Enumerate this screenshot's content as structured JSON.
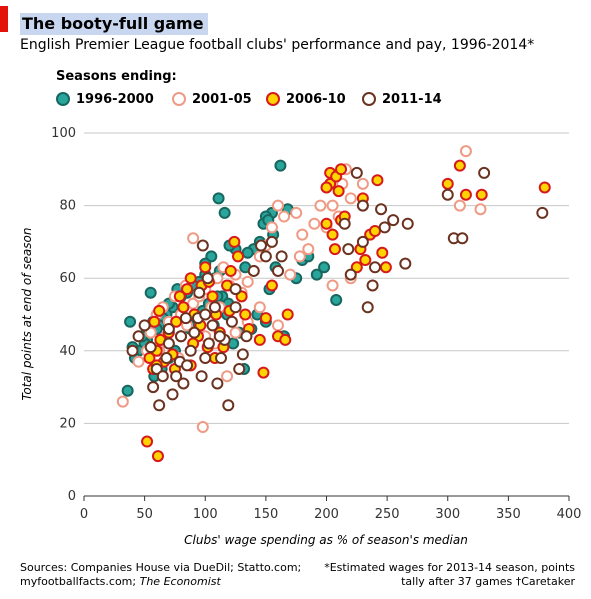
{
  "header": {
    "title": "The booty-full game",
    "subtitle": "English Premier League football clubs' performance and pay, 1996-2014*"
  },
  "legend": {
    "title": "Seasons ending:",
    "items": [
      "1996-2000",
      "2001-05",
      "2006-10",
      "2011-14"
    ]
  },
  "footer": {
    "sources_line1": "Sources: Companies House via DueDil; Statto.com;",
    "sources_line2_a": "myfootballfacts.com; ",
    "sources_line2_b": "The Economist",
    "note_line1": "*Estimated wages for 2013-14 season, points",
    "note_line2": "tally after 37 games †Caretaker"
  },
  "colors": {
    "s1996_fill": "#2aa59b",
    "s1996_stroke": "#17665f",
    "s2001_fill": "#ffffff",
    "s2001_stroke": "#ef9a84",
    "s2006_fill": "#ffd400",
    "s2006_stroke": "#d7191c",
    "s2011_fill": "#ffffff",
    "s2011_stroke": "#6b3220",
    "grid": "#c7c7c7",
    "axis": "#333333"
  },
  "chart_data": {
    "type": "scatter",
    "xlabel": "Clubs' wage spending as % of season's median",
    "ylabel": "Total points at end of season",
    "xlim": [
      0,
      400
    ],
    "ylim": [
      0,
      100
    ],
    "xticks": [
      0,
      50,
      100,
      150,
      200,
      250,
      300,
      350,
      400
    ],
    "yticks": [
      0,
      20,
      40,
      60,
      80,
      100
    ],
    "grid": "horizontal",
    "legend_position": "top-left",
    "series": [
      {
        "name": "1996-2000",
        "points": [
          [
            162,
            91
          ],
          [
            111,
            82
          ],
          [
            116,
            78
          ],
          [
            155,
            78
          ],
          [
            168,
            79
          ],
          [
            150,
            77
          ],
          [
            148,
            75
          ],
          [
            152,
            76
          ],
          [
            156,
            72
          ],
          [
            145,
            70
          ],
          [
            140,
            68
          ],
          [
            135,
            67
          ],
          [
            125,
            68
          ],
          [
            120,
            69
          ],
          [
            133,
            63
          ],
          [
            112,
            62
          ],
          [
            108,
            60
          ],
          [
            100,
            61
          ],
          [
            95,
            59
          ],
          [
            90,
            58
          ],
          [
            85,
            56
          ],
          [
            80,
            55
          ],
          [
            77,
            57
          ],
          [
            73,
            52
          ],
          [
            70,
            53
          ],
          [
            68,
            50
          ],
          [
            65,
            49
          ],
          [
            62,
            47
          ],
          [
            60,
            46
          ],
          [
            57,
            48
          ],
          [
            55,
            56
          ],
          [
            52,
            43
          ],
          [
            50,
            42
          ],
          [
            48,
            44
          ],
          [
            45,
            40
          ],
          [
            42,
            38
          ],
          [
            40,
            41
          ],
          [
            38,
            48
          ],
          [
            36,
            29
          ],
          [
            58,
            33
          ],
          [
            64,
            35
          ],
          [
            70,
            38
          ],
          [
            75,
            40
          ],
          [
            80,
            44
          ],
          [
            88,
            46
          ],
          [
            92,
            49
          ],
          [
            98,
            51
          ],
          [
            103,
            53
          ],
          [
            107,
            47
          ],
          [
            114,
            55
          ],
          [
            119,
            53
          ],
          [
            128,
            45
          ],
          [
            132,
            35
          ],
          [
            138,
            46
          ],
          [
            143,
            50
          ],
          [
            153,
            57
          ],
          [
            158,
            63
          ],
          [
            165,
            44
          ],
          [
            175,
            60
          ],
          [
            180,
            65
          ],
          [
            185,
            66
          ],
          [
            192,
            61
          ],
          [
            198,
            63
          ],
          [
            208,
            54
          ],
          [
            150,
            48
          ],
          [
            110,
            55
          ],
          [
            105,
            66
          ],
          [
            100,
            64
          ],
          [
            118,
            50
          ],
          [
            123,
            42
          ]
        ]
      },
      {
        "name": "2001-05",
        "points": [
          [
            32,
            26
          ],
          [
            98,
            19
          ],
          [
            45,
            37
          ],
          [
            52,
            40
          ],
          [
            55,
            45
          ],
          [
            60,
            50
          ],
          [
            65,
            52
          ],
          [
            70,
            48
          ],
          [
            75,
            55
          ],
          [
            80,
            50
          ],
          [
            85,
            47
          ],
          [
            90,
            53
          ],
          [
            95,
            55
          ],
          [
            100,
            57
          ],
          [
            105,
            52
          ],
          [
            110,
            60
          ],
          [
            115,
            63
          ],
          [
            120,
            58
          ],
          [
            125,
            61
          ],
          [
            130,
            56
          ],
          [
            135,
            59
          ],
          [
            140,
            62
          ],
          [
            145,
            66
          ],
          [
            150,
            69
          ],
          [
            155,
            74
          ],
          [
            160,
            80
          ],
          [
            165,
            77
          ],
          [
            175,
            78
          ],
          [
            180,
            72
          ],
          [
            190,
            75
          ],
          [
            195,
            80
          ],
          [
            200,
            74
          ],
          [
            205,
            80
          ],
          [
            210,
            77
          ],
          [
            213,
            86
          ],
          [
            216,
            90
          ],
          [
            220,
            82
          ],
          [
            230,
            86
          ],
          [
            205,
            58
          ],
          [
            220,
            60
          ],
          [
            170,
            61
          ],
          [
            178,
            66
          ],
          [
            185,
            68
          ],
          [
            310,
            80
          ],
          [
            315,
            95
          ],
          [
            327,
            79
          ],
          [
            90,
            71
          ],
          [
            118,
            33
          ],
          [
            125,
            45
          ],
          [
            135,
            48
          ],
          [
            160,
            47
          ],
          [
            145,
            52
          ],
          [
            100,
            44
          ],
          [
            108,
            42
          ],
          [
            78,
            38
          ],
          [
            68,
            44
          ],
          [
            62,
            40
          ],
          [
            84,
            58
          ],
          [
            112,
            52
          ]
        ]
      },
      {
        "name": "2006-10",
        "points": [
          [
            52,
            15
          ],
          [
            61,
            11
          ],
          [
            54,
            38
          ],
          [
            57,
            35
          ],
          [
            60,
            40
          ],
          [
            63,
            43
          ],
          [
            66,
            37
          ],
          [
            70,
            45
          ],
          [
            73,
            39
          ],
          [
            76,
            48
          ],
          [
            79,
            55
          ],
          [
            82,
            52
          ],
          [
            85,
            57
          ],
          [
            88,
            60
          ],
          [
            91,
            50
          ],
          [
            94,
            44
          ],
          [
            97,
            58
          ],
          [
            100,
            63
          ],
          [
            103,
            59
          ],
          [
            106,
            55
          ],
          [
            109,
            50
          ],
          [
            112,
            45
          ],
          [
            115,
            41
          ],
          [
            118,
            58
          ],
          [
            121,
            62
          ],
          [
            124,
            70
          ],
          [
            127,
            66
          ],
          [
            130,
            55
          ],
          [
            133,
            50
          ],
          [
            136,
            46
          ],
          [
            148,
            34
          ],
          [
            150,
            49
          ],
          [
            155,
            58
          ],
          [
            160,
            44
          ],
          [
            166,
            43
          ],
          [
            168,
            50
          ],
          [
            200,
            75
          ],
          [
            203,
            86
          ],
          [
            205,
            72
          ],
          [
            207,
            68
          ],
          [
            210,
            84
          ],
          [
            212,
            76
          ],
          [
            203,
            89
          ],
          [
            208,
            88
          ],
          [
            212,
            90
          ],
          [
            215,
            77
          ],
          [
            225,
            63
          ],
          [
            228,
            68
          ],
          [
            232,
            65
          ],
          [
            236,
            72
          ],
          [
            240,
            73
          ],
          [
            242,
            87
          ],
          [
            246,
            67
          ],
          [
            249,
            63
          ],
          [
            200,
            85
          ],
          [
            300,
            86
          ],
          [
            310,
            91
          ],
          [
            315,
            83
          ],
          [
            328,
            83
          ],
          [
            380,
            85
          ],
          [
            90,
            42
          ],
          [
            96,
            47
          ],
          [
            60,
            36
          ],
          [
            58,
            48
          ],
          [
            62,
            51
          ],
          [
            75,
            35
          ],
          [
            88,
            36
          ],
          [
            102,
            41
          ],
          [
            108,
            38
          ],
          [
            120,
            51
          ],
          [
            145,
            43
          ],
          [
            230,
            82
          ]
        ]
      },
      {
        "name": "2011-14",
        "points": [
          [
            40,
            40
          ],
          [
            45,
            44
          ],
          [
            50,
            47
          ],
          [
            55,
            41
          ],
          [
            57,
            30
          ],
          [
            60,
            35
          ],
          [
            62,
            25
          ],
          [
            65,
            33
          ],
          [
            68,
            38
          ],
          [
            70,
            42
          ],
          [
            73,
            28
          ],
          [
            76,
            33
          ],
          [
            79,
            37
          ],
          [
            82,
            31
          ],
          [
            85,
            36
          ],
          [
            88,
            40
          ],
          [
            91,
            45
          ],
          [
            94,
            49
          ],
          [
            97,
            33
          ],
          [
            100,
            38
          ],
          [
            103,
            42
          ],
          [
            106,
            47
          ],
          [
            108,
            52
          ],
          [
            110,
            31
          ],
          [
            113,
            38
          ],
          [
            116,
            43
          ],
          [
            119,
            25
          ],
          [
            122,
            48
          ],
          [
            125,
            52
          ],
          [
            128,
            35
          ],
          [
            131,
            39
          ],
          [
            134,
            44
          ],
          [
            140,
            62
          ],
          [
            146,
            69
          ],
          [
            150,
            66
          ],
          [
            155,
            70
          ],
          [
            160,
            62
          ],
          [
            163,
            66
          ],
          [
            215,
            75
          ],
          [
            218,
            68
          ],
          [
            220,
            61
          ],
          [
            225,
            89
          ],
          [
            230,
            70
          ],
          [
            234,
            52
          ],
          [
            238,
            58
          ],
          [
            240,
            63
          ],
          [
            245,
            79
          ],
          [
            248,
            74
          ],
          [
            255,
            76
          ],
          [
            265,
            64
          ],
          [
            267,
            75
          ],
          [
            230,
            80
          ],
          [
            300,
            83
          ],
          [
            305,
            71
          ],
          [
            312,
            71
          ],
          [
            330,
            89
          ],
          [
            378,
            78
          ],
          [
            95,
            56
          ],
          [
            98,
            69
          ],
          [
            102,
            60
          ],
          [
            84,
            49
          ],
          [
            70,
            46
          ],
          [
            80,
            44
          ],
          [
            112,
            44
          ],
          [
            125,
            57
          ],
          [
            100,
            50
          ]
        ]
      }
    ]
  }
}
